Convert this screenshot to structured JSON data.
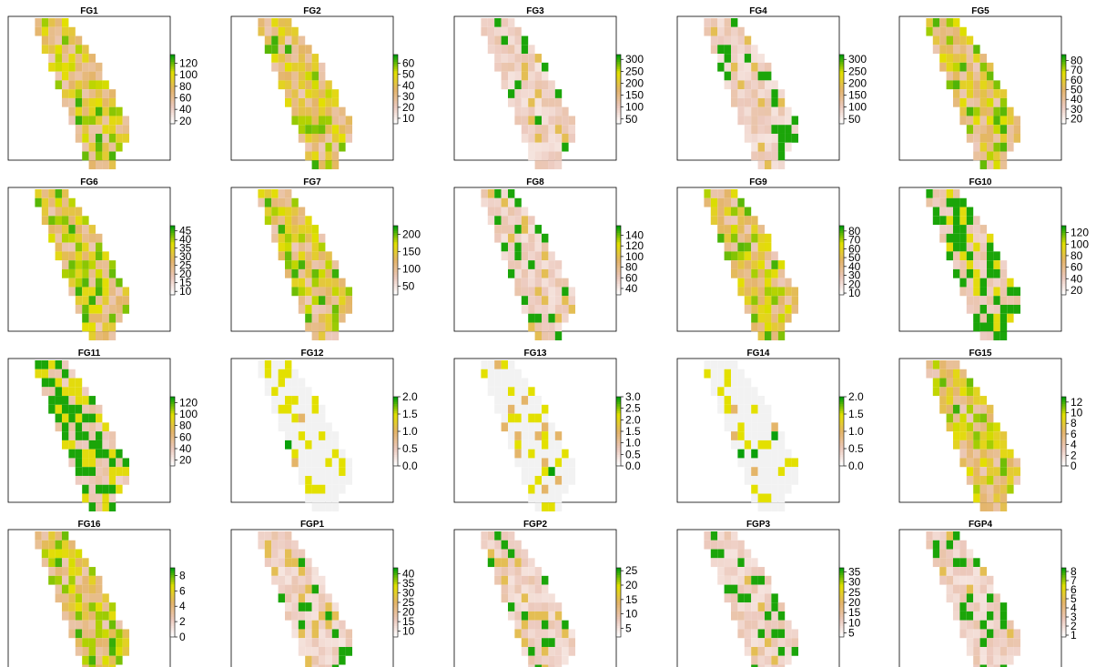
{
  "figure": {
    "palette": {
      "low": "#ffffff",
      "pink": "#ecc9bd",
      "tan": "#e4b569",
      "yellow": "#e3e000",
      "green": "#0aa00a",
      "na": "#f2f2f2"
    },
    "panels": [
      {
        "title": "FG1",
        "legend_ticks": [
          "120",
          "100",
          "80",
          "60",
          "40",
          "20"
        ],
        "min": 15,
        "max": 135,
        "style": "mixed"
      },
      {
        "title": "FG2",
        "legend_ticks": [
          "60",
          "50",
          "40",
          "30",
          "20",
          "10"
        ],
        "min": 5,
        "max": 68,
        "style": "mixed"
      },
      {
        "title": "FG3",
        "legend_ticks": [
          "300",
          "250",
          "200",
          "150",
          "100",
          "50"
        ],
        "min": 30,
        "max": 320,
        "style": "low"
      },
      {
        "title": "FG4",
        "legend_ticks": [
          "300",
          "250",
          "200",
          "150",
          "100",
          "50"
        ],
        "min": 30,
        "max": 320,
        "style": "low"
      },
      {
        "title": "FG5",
        "legend_ticks": [
          "80",
          "70",
          "60",
          "50",
          "40",
          "30",
          "20"
        ],
        "min": 15,
        "max": 86,
        "style": "mixed"
      },
      {
        "title": "FG6",
        "legend_ticks": [
          "45",
          "40",
          "35",
          "30",
          "25",
          "20",
          "15",
          "10"
        ],
        "min": 8,
        "max": 48,
        "style": "mixed"
      },
      {
        "title": "FG7",
        "legend_ticks": [
          "200",
          "150",
          "100",
          "50"
        ],
        "min": 25,
        "max": 225,
        "style": "mixed"
      },
      {
        "title": "FG8",
        "legend_ticks": [
          "140",
          "120",
          "100",
          "80",
          "60",
          "40"
        ],
        "min": 28,
        "max": 158,
        "style": "low"
      },
      {
        "title": "FG9",
        "legend_ticks": [
          "80",
          "70",
          "60",
          "50",
          "40",
          "30",
          "20",
          "10"
        ],
        "min": 8,
        "max": 86,
        "style": "mixed"
      },
      {
        "title": "FG10",
        "legend_ticks": [
          "120",
          "100",
          "80",
          "60",
          "40",
          "20"
        ],
        "min": 12,
        "max": 132,
        "style": "green"
      },
      {
        "title": "FG11",
        "legend_ticks": [
          "120",
          "100",
          "80",
          "60",
          "40",
          "20"
        ],
        "min": 10,
        "max": 130,
        "style": "green"
      },
      {
        "title": "FG12",
        "legend_ticks": [
          "2.0",
          "1.5",
          "1.0",
          "0.5",
          "0.0"
        ],
        "min": 0,
        "max": 2,
        "style": "sparse"
      },
      {
        "title": "FG13",
        "legend_ticks": [
          "3.0",
          "2.5",
          "2.0",
          "1.5",
          "1.0",
          "0.5",
          "0.0"
        ],
        "min": 0,
        "max": 3,
        "style": "sparse2"
      },
      {
        "title": "FG14",
        "legend_ticks": [
          "2.0",
          "1.5",
          "1.0",
          "0.5",
          "0.0"
        ],
        "min": 0,
        "max": 2,
        "style": "sparse"
      },
      {
        "title": "FG15",
        "legend_ticks": [
          "12",
          "10",
          "8",
          "6",
          "4",
          "2",
          "0"
        ],
        "min": 0,
        "max": 13,
        "style": "mixed"
      },
      {
        "title": "FG16",
        "legend_ticks": [
          "8",
          "6",
          "4",
          "2",
          "0"
        ],
        "min": 0,
        "max": 9,
        "style": "mixed"
      },
      {
        "title": "FGP1",
        "legend_ticks": [
          "40",
          "35",
          "30",
          "25",
          "20",
          "15",
          "10"
        ],
        "min": 7,
        "max": 43,
        "style": "low"
      },
      {
        "title": "FGP2",
        "legend_ticks": [
          "25",
          "20",
          "15",
          "10",
          "5"
        ],
        "min": 2,
        "max": 26,
        "style": "low"
      },
      {
        "title": "FGP3",
        "legend_ticks": [
          "35",
          "30",
          "25",
          "20",
          "15",
          "10",
          "5"
        ],
        "min": 3,
        "max": 37,
        "style": "low"
      },
      {
        "title": "FGP4",
        "legend_ticks": [
          "8",
          "7",
          "6",
          "5",
          "4",
          "3",
          "2",
          "1"
        ],
        "min": 0.8,
        "max": 8.4,
        "style": "low"
      }
    ]
  }
}
